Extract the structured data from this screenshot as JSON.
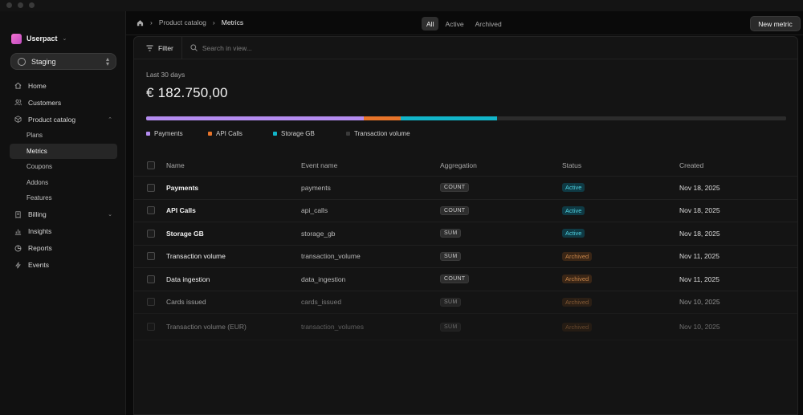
{
  "workspace": {
    "name": "Userpact",
    "environment": "Staging"
  },
  "nav": {
    "home": "Home",
    "customers": "Customers",
    "product_catalog": "Product catalog",
    "plans": "Plans",
    "metrics": "Metrics",
    "coupons": "Coupons",
    "addons": "Addons",
    "features": "Features",
    "billing": "Billing",
    "insights": "Insights",
    "reports": "Reports",
    "events": "Events"
  },
  "breadcrumb": {
    "parent": "Product catalog",
    "current": "Metrics"
  },
  "tabs": {
    "all": "All",
    "active": "Active",
    "archived": "Archived"
  },
  "header": {
    "new_button": "New metric"
  },
  "toolbar": {
    "filter_label": "Filter",
    "search_placeholder": "Search in view..."
  },
  "summary": {
    "period": "Last 30 days",
    "amount": "€ 182.750,00"
  },
  "breakdown": {
    "segments": [
      {
        "label": "Payments",
        "share": 0.34,
        "color": "#b48cf0"
      },
      {
        "label": "API Calls",
        "share": 0.058,
        "color": "#e8742a"
      },
      {
        "label": "Storage GB",
        "share": 0.15,
        "color": "#12b5c9"
      },
      {
        "label": "Transaction volume",
        "share": 0.452,
        "color": "#2c2c2c"
      }
    ]
  },
  "table": {
    "columns": {
      "name": "Name",
      "event": "Event name",
      "aggregation": "Aggregation",
      "status": "Status",
      "created": "Created"
    },
    "rows": [
      {
        "name": "Payments",
        "event": "payments",
        "aggregation": "COUNT",
        "status": "Active",
        "created": "Nov 18, 2025"
      },
      {
        "name": "API Calls",
        "event": "api_calls",
        "aggregation": "COUNT",
        "status": "Active",
        "created": "Nov 18, 2025"
      },
      {
        "name": "Storage GB",
        "event": "storage_gb",
        "aggregation": "SUM",
        "status": "Active",
        "created": "Nov 18, 2025"
      },
      {
        "name": "Transaction volume",
        "event": "transaction_volume",
        "aggregation": "SUM",
        "status": "Archived",
        "created": "Nov 11, 2025"
      },
      {
        "name": "Data ingestion",
        "event": "data_ingestion",
        "aggregation": "COUNT",
        "status": "Archived",
        "created": "Nov 11, 2025"
      },
      {
        "name": "Cards issued",
        "event": "cards_issued",
        "aggregation": "SUM",
        "status": "Archived",
        "created": "Nov 10, 2025"
      },
      {
        "name": "Transaction volume (EUR)",
        "event": "transaction_volumes",
        "aggregation": "SUM",
        "status": "Archived",
        "created": "Nov 10, 2025"
      }
    ]
  }
}
